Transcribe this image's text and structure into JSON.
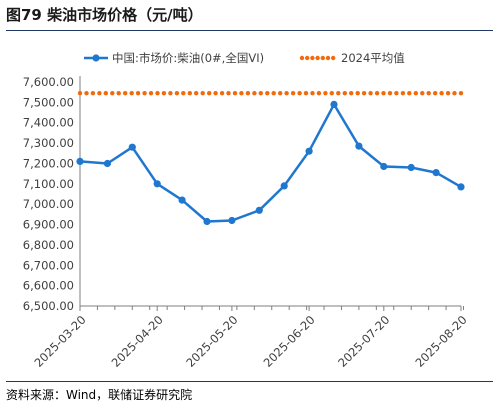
{
  "title": "图79 柴油市场价格（元/吨）",
  "source": "资料来源：Wind，联储证券研究院",
  "colors": {
    "series_line": "#1f77d0",
    "average_dots": "#f26a0a",
    "axis": "#7f7f7f",
    "text": "#404040",
    "rule": "#1f3864"
  },
  "chart_data": {
    "type": "line",
    "x": [
      "2025-03-20",
      "2025-03-27",
      "2025-04-03",
      "2025-04-10",
      "2025-04-17",
      "2025-04-24",
      "2025-05-01",
      "2025-05-08",
      "2025-05-15",
      "2025-05-22",
      "2025-05-29",
      "2025-06-05",
      "2025-06-12",
      "2025-06-19",
      "2025-06-26",
      "2025-07-03",
      "2025-07-10",
      "2025-07-17",
      "2025-07-24",
      "2025-07-31",
      "2025-08-07",
      "2025-08-14",
      "2025-08-21"
    ],
    "x_tick_labels": [
      "2025-03-20",
      "2025-04-20",
      "2025-05-20",
      "2025-06-20",
      "2025-07-20",
      "2025-08-20"
    ],
    "series": [
      {
        "name": "中国:市场价:柴油(0#,全国VI)",
        "style": "line-with-markers",
        "x": [
          "2025-03-20",
          "2025-03-31",
          "2025-04-10",
          "2025-04-20",
          "2025-04-30",
          "2025-05-10",
          "2025-05-20",
          "2025-05-31",
          "2025-06-10",
          "2025-06-20",
          "2025-06-30",
          "2025-07-10",
          "2025-07-20",
          "2025-07-31",
          "2025-08-10",
          "2025-08-20"
        ],
        "values": [
          7210,
          7200,
          7280,
          7100,
          7020,
          6915,
          6920,
          6970,
          7090,
          7260,
          7490,
          7285,
          7185,
          7180,
          7155,
          7085
        ]
      },
      {
        "name": "2024平均值",
        "style": "dotted",
        "x": [
          "2025-03-20",
          "2025-08-20"
        ],
        "values": [
          7545,
          7545
        ]
      }
    ],
    "y_ticks": [
      6500,
      6600,
      6700,
      6800,
      6900,
      7000,
      7100,
      7200,
      7300,
      7400,
      7500,
      7600
    ],
    "y_tick_labels": [
      "6,500.00",
      "6,600.00",
      "6,700.00",
      "6,800.00",
      "6,900.00",
      "7,000.00",
      "7,100.00",
      "7,200.00",
      "7,300.00",
      "7,400.00",
      "7,500.00",
      "7,600.00"
    ],
    "ylim": [
      6500,
      7600
    ],
    "grid": false,
    "legend_position": "top"
  }
}
